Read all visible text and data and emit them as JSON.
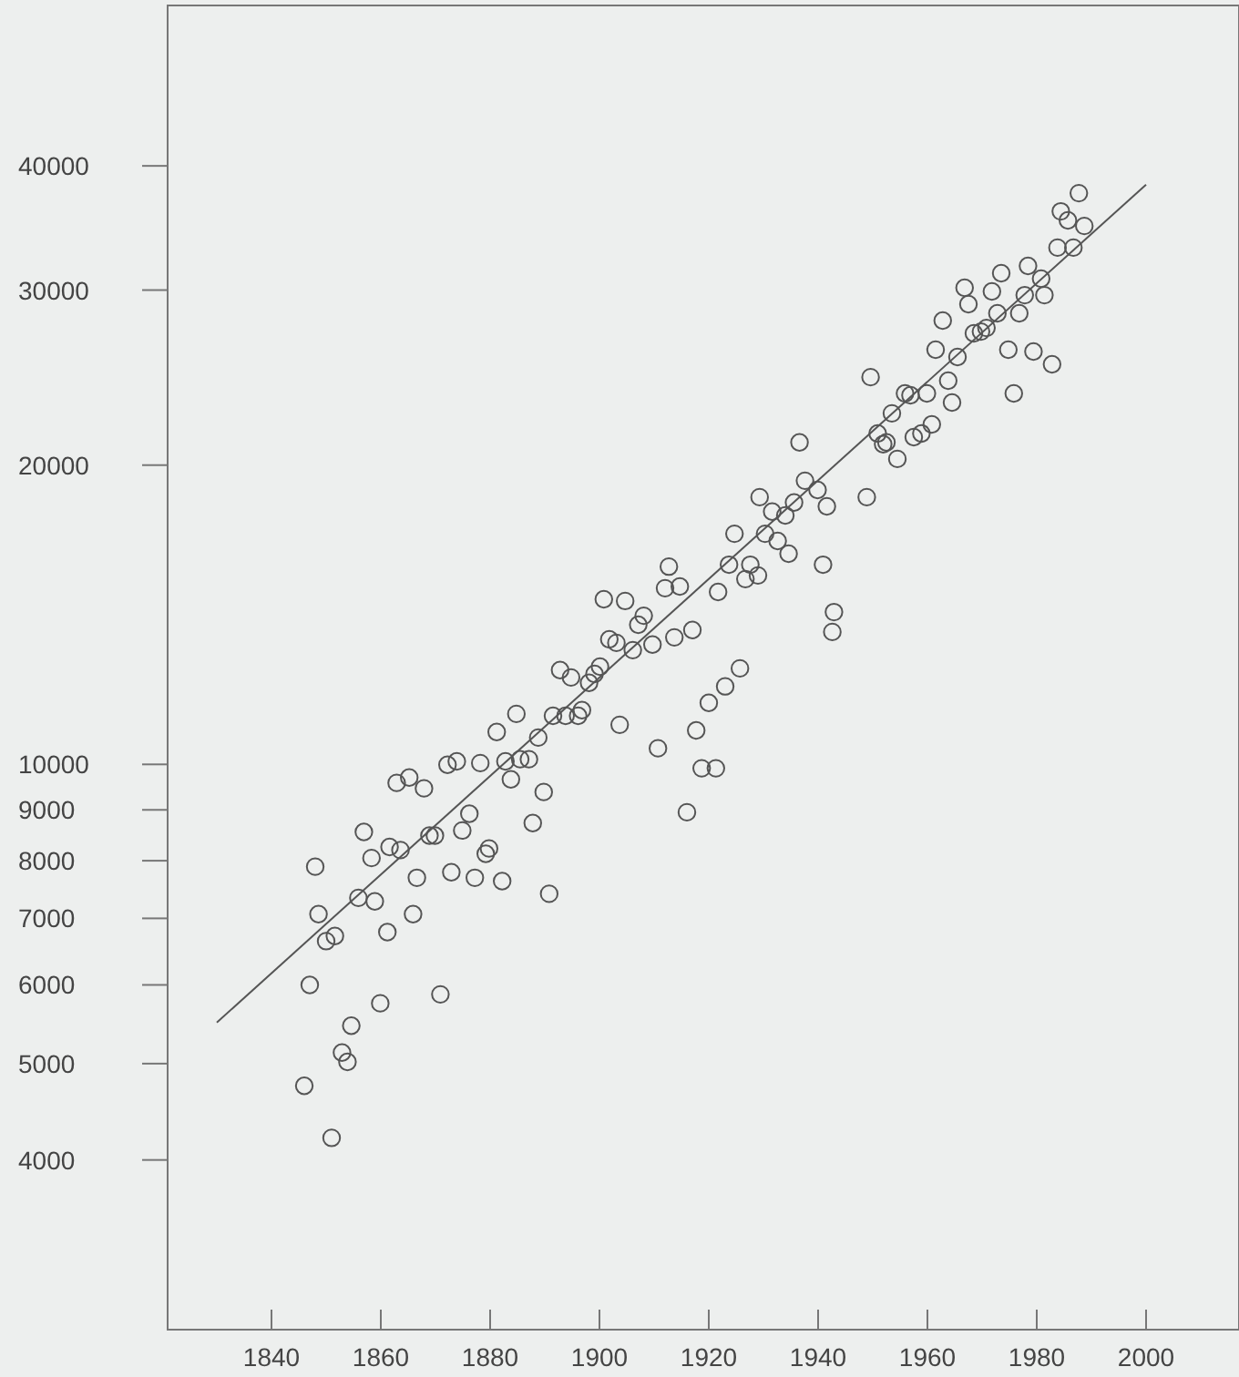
{
  "chart_data": {
    "type": "scatter",
    "log": "y",
    "xlim": [
      1821,
      2017
    ],
    "ylim": [
      2700,
      58000
    ],
    "xticks": [
      1840,
      1860,
      1880,
      1900,
      1920,
      1940,
      1960,
      1980,
      2000
    ],
    "yticks": [
      4000,
      5000,
      6000,
      7000,
      8000,
      9000,
      10000,
      20000,
      30000,
      40000
    ],
    "series": [
      {
        "marker": "circle",
        "color": "#555555",
        "x": [
          1846.0,
          1847.0,
          1848.0,
          1848.6,
          1850.0,
          1851.0,
          1851.6,
          1852.9,
          1853.9,
          1854.6,
          1855.9,
          1856.9,
          1858.3,
          1858.9,
          1859.9,
          1861.2,
          1861.6,
          1862.9,
          1863.6,
          1865.2,
          1865.9,
          1866.6,
          1867.9,
          1868.9,
          1869.9,
          1870.9,
          1872.2,
          1872.9,
          1873.9,
          1874.9,
          1876.2,
          1877.2,
          1878.2,
          1879.2,
          1879.8,
          1881.2,
          1882.2,
          1882.8,
          1883.8,
          1884.8,
          1885.5,
          1887.1,
          1887.8,
          1888.8,
          1889.8,
          1890.8,
          1891.5,
          1892.8,
          1893.8,
          1894.8,
          1896.1,
          1896.8,
          1898.1,
          1899.1,
          1900.1,
          1900.8,
          1901.8,
          1903.1,
          1903.7,
          1904.7,
          1906.1,
          1907.1,
          1908.1,
          1909.7,
          1910.7,
          1912.0,
          1912.7,
          1913.7,
          1914.7,
          1916.0,
          1917.0,
          1917.7,
          1918.7,
          1920.0,
          1921.3,
          1921.7,
          1923.0,
          1923.7,
          1924.7,
          1925.7,
          1926.7,
          1927.6,
          1929.0,
          1929.3,
          1930.3,
          1931.6,
          1932.6,
          1934.0,
          1934.6,
          1935.6,
          1936.6,
          1937.6,
          1939.9,
          1940.9,
          1941.6,
          1942.6,
          1942.9,
          1948.9,
          1949.6,
          1950.9,
          1951.9,
          1952.5,
          1953.5,
          1954.5,
          1955.9,
          1956.9,
          1957.5,
          1958.9,
          1959.9,
          1960.8,
          1961.5,
          1962.8,
          1963.8,
          1964.5,
          1965.5,
          1966.8,
          1967.5,
          1968.5,
          1969.8,
          1970.8,
          1971.8,
          1972.8,
          1973.5,
          1974.8,
          1975.8,
          1976.8,
          1977.8,
          1978.4,
          1979.4,
          1980.8,
          1981.4,
          1982.8,
          1983.8,
          1984.4,
          1985.7,
          1986.7,
          1987.7,
          1988.7
        ],
        "values": [
          4750,
          6000,
          7890,
          7070,
          6640,
          4210,
          6720,
          5130,
          5020,
          5460,
          7340,
          8550,
          8050,
          7280,
          5750,
          6780,
          8260,
          9580,
          8200,
          9700,
          7070,
          7690,
          9460,
          8480,
          8480,
          5870,
          9990,
          7790,
          10070,
          8580,
          8920,
          7690,
          10030,
          8130,
          8230,
          10780,
          7630,
          10070,
          9660,
          11240,
          10120,
          10120,
          8730,
          10640,
          9380,
          7410,
          11190,
          12440,
          11190,
          12230,
          11190,
          11340,
          12080,
          12330,
          12540,
          14660,
          13360,
          13250,
          10960,
          14600,
          13030,
          13820,
          14110,
          13200,
          10380,
          15040,
          15810,
          13420,
          15100,
          8950,
          13650,
          10820,
          9910,
          11530,
          9910,
          14910,
          11980,
          15880,
          17060,
          12490,
          15360,
          15880,
          15490,
          18570,
          17060,
          17960,
          16780,
          17800,
          16290,
          18340,
          21080,
          19290,
          18880,
          15880,
          18180,
          13590,
          14230,
          18570,
          24520,
          21520,
          20990,
          21080,
          22550,
          20290,
          23610,
          23510,
          21340,
          21520,
          23610,
          21980,
          26130,
          27950,
          24320,
          23120,
          25690,
          30160,
          29040,
          27140,
          27250,
          27480,
          29910,
          28430,
          31190,
          26130,
          23610,
          28430,
          29650,
          31730,
          26020,
          30800,
          29650,
          25260,
          33100,
          36000,
          35250,
          33100,
          37550,
          34800
        ]
      },
      {
        "type": "line",
        "color": "#555555",
        "x": [
          1830,
          2000
        ],
        "values": [
          5500,
          38300
        ]
      }
    ]
  }
}
